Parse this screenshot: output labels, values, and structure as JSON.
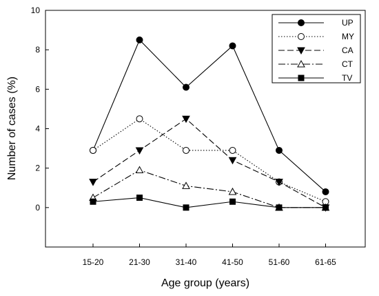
{
  "chart_data": {
    "type": "line",
    "title": "",
    "xlabel": "Age group (years)",
    "ylabel": "Number of cases (%)",
    "categories": [
      "15-20",
      "21-30",
      "31-40",
      "41-50",
      "51-60",
      "61-65"
    ],
    "ylim": [
      -2,
      10
    ],
    "yticks": [
      "0",
      "2",
      "4",
      "6",
      "8",
      "10"
    ],
    "grid": false,
    "legend_position": "top-right",
    "series": [
      {
        "name": "UP",
        "values": [
          2.9,
          8.5,
          6.1,
          8.2,
          2.9,
          0.8
        ],
        "marker": "circle-filled",
        "dash": "solid",
        "color": "#000000"
      },
      {
        "name": "MY",
        "values": [
          2.9,
          4.5,
          2.9,
          2.9,
          1.3,
          0.3
        ],
        "marker": "circle-open",
        "dash": "dotted",
        "color": "#000000"
      },
      {
        "name": "CA",
        "values": [
          1.3,
          2.9,
          4.5,
          2.4,
          1.3,
          0.0
        ],
        "marker": "triangle-down-filled",
        "dash": "dashed",
        "color": "#000000"
      },
      {
        "name": "CT",
        "values": [
          0.5,
          1.9,
          1.1,
          0.8,
          0.0,
          0.0
        ],
        "marker": "triangle-up-open",
        "dash": "dashdot",
        "color": "#000000"
      },
      {
        "name": "TV",
        "values": [
          0.3,
          0.5,
          0.0,
          0.3,
          0.0,
          0.0
        ],
        "marker": "square-filled",
        "dash": "solid",
        "color": "#000000"
      }
    ]
  }
}
